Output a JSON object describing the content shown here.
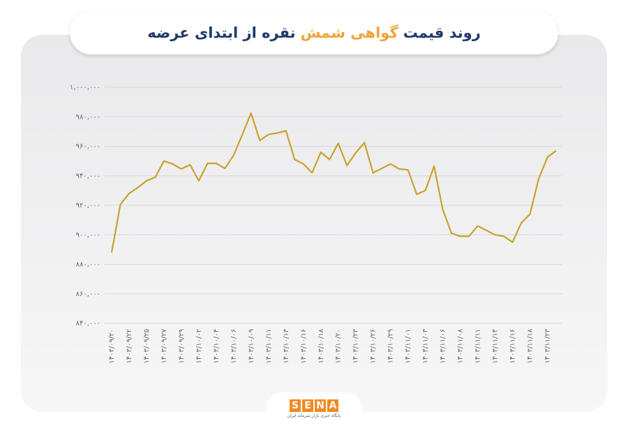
{
  "chart_data": {
    "type": "line",
    "title": [
      "روند قیمت",
      "گواهی شمش",
      "نقره از ابتدای عرضه"
    ],
    "categories": [
      "۱۴۰۳/۰۹/۲۰",
      null,
      "۱۴۰۳/۰۹/۲۲",
      null,
      "۱۴۰۳/۰۹/۲۵",
      null,
      "۱۴۰۳/۰۹/۲۷",
      null,
      "۱۴۰۳/۰۹/۲۹",
      null,
      "۱۴۰۳/۱۰/۰۲",
      null,
      "۱۴۰۳/۱۰/۰۴",
      null,
      "۱۴۰۳/۱۰/۰۶",
      null,
      "۱۴۰۳/۱۰/۰۹",
      null,
      "۱۴۰۳/۱۰/۱۱",
      null,
      "۱۴۰۳/۱۰/۱۳",
      null,
      "۱۴۰۳/۱۰/۱۶",
      null,
      "۱۴۰۳/۱۰/۱۸",
      null,
      "۱۴۰۳/۱۰/۲۰",
      null,
      "۱۴۰۳/۱۰/۲۳",
      null,
      "۱۴۰۳/۱۰/۲۶",
      null,
      "۱۴۰۳/۱۰/۲۹",
      null,
      "۱۴۰۳/۱۱/۰۱",
      null,
      "۱۴۰۳/۱۱/۰۳",
      null,
      "۱۴۰۳/۱۱/۰۶",
      null,
      "۱۴۰۳/۱۱/۰۸",
      null,
      "۱۴۰۳/۱۱/۱۱",
      null,
      "۱۴۰۳/۱۱/۱۴",
      null,
      "۱۴۰۳/۱۱/۱۶",
      null,
      "۱۴۰۳/۱۱/۱۸",
      null,
      "۱۴۰۳/۱۱/۲۳",
      null
    ],
    "values": [
      888000,
      920500,
      928000,
      932000,
      936600,
      939000,
      950000,
      948000,
      944600,
      947500,
      936600,
      948400,
      948400,
      945000,
      954000,
      968000,
      982500,
      964000,
      968000,
      969000,
      970500,
      951000,
      948000,
      942000,
      956000,
      951000,
      962000,
      947000,
      955500,
      962500,
      942000,
      945000,
      948000,
      944600,
      944000,
      927500,
      930000,
      946500,
      917000,
      901000,
      899000,
      899000,
      906000,
      903000,
      900000,
      899000,
      895000,
      908000,
      914000,
      938000,
      952500,
      957000
    ],
    "color": "#c9a22a",
    "ylim": [
      840000,
      1000000
    ],
    "yticks": [
      {
        "value": 840000,
        "label": "۸۴۰,۰۰۰"
      },
      {
        "value": 860000,
        "label": "۸۶۰,۰۰۰"
      },
      {
        "value": 880000,
        "label": "۸۸۰,۰۰۰"
      },
      {
        "value": 900000,
        "label": "۹۰۰,۰۰۰"
      },
      {
        "value": 920000,
        "label": "۹۲۰,۰۰۰"
      },
      {
        "value": 940000,
        "label": "۹۴۰,۰۰۰"
      },
      {
        "value": 960000,
        "label": "۹۶۰,۰۰۰"
      },
      {
        "value": 980000,
        "label": "۹۸۰,۰۰۰"
      },
      {
        "value": 1000000,
        "label": "۱,۰۰۰,۰۰۰"
      }
    ],
    "grid": true
  },
  "logo": {
    "letters": [
      "S",
      "E",
      "N",
      "A"
    ],
    "tagline": "پایگاه خبری بازار سرمایه ایران"
  }
}
